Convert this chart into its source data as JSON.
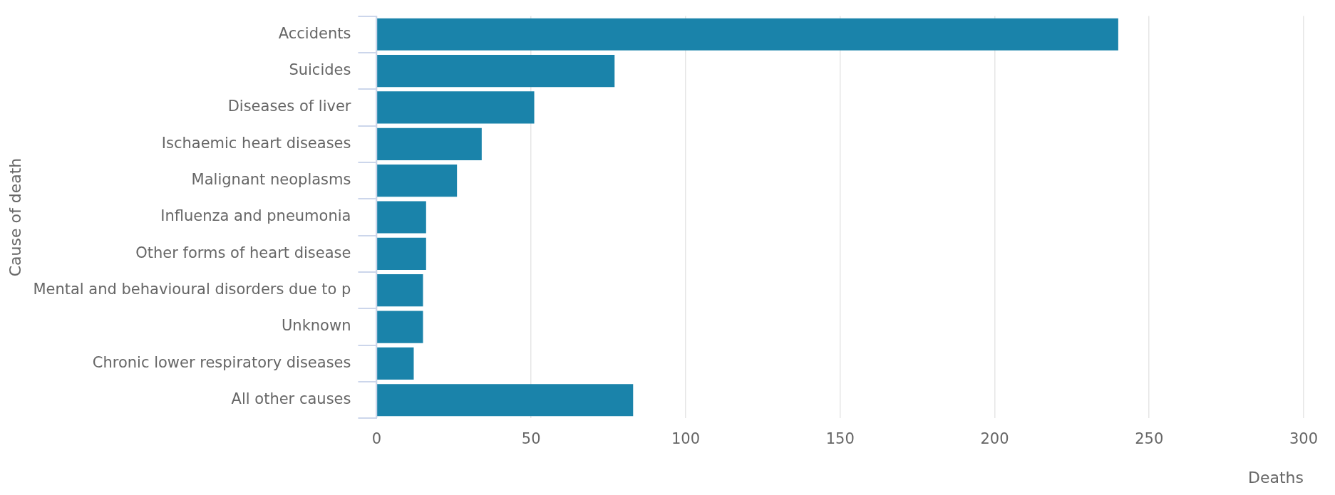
{
  "chart_data": {
    "type": "bar",
    "orientation": "horizontal",
    "xlabel": "Deaths",
    "ylabel": "Cause of death",
    "categories": [
      "Accidents",
      "Suicides",
      "Diseases of liver",
      "Ischaemic heart diseases",
      "Malignant neoplasms",
      "Influenza and pneumonia",
      "Other forms of heart disease",
      "Mental and behavioural disorders due to p",
      "Unknown",
      "Chronic lower respiratory diseases",
      "All other causes"
    ],
    "values": [
      240,
      77,
      51,
      34,
      26,
      16,
      16,
      15,
      15,
      12,
      83
    ],
    "color": "#1a83aa",
    "xlim": [
      0,
      300
    ],
    "xticks": [
      0,
      50,
      100,
      150,
      200,
      250,
      300
    ],
    "grid": "x",
    "legend": false
  }
}
